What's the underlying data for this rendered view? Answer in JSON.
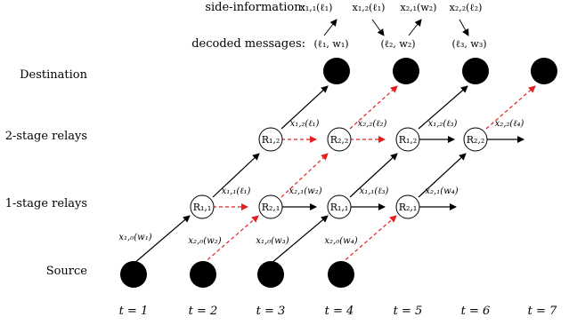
{
  "header": {
    "side_information_label": "side-information:",
    "decoded_messages_label": "decoded messages:",
    "side_information": [
      "x₁,₁(ℓ₁)",
      "x₁,₂(ℓ₁)",
      "x₂,₁(w₂)",
      "x₂,₂(ℓ₂)"
    ],
    "decoded_messages": [
      "(ℓ₁, w₁)",
      "(ℓ₂, w₂)",
      "(ℓ₃, w₃)"
    ]
  },
  "rows": {
    "destination": "Destination",
    "two_stage": "2-stage relays",
    "one_stage": "1-stage relays",
    "source": "Source"
  },
  "times": [
    "t = 1",
    "t = 2",
    "t = 3",
    "t = 4",
    "t = 5",
    "t = 6",
    "t = 7"
  ],
  "relay_nodes": {
    "r11": "R₁,₁",
    "r21": "R₂,₁",
    "r12": "R₁,₂",
    "r22": "R₂,₂"
  },
  "edge_labels": {
    "source_t1": "x₁,₀(w₁)",
    "source_t2": "x₂,₀(w₂)",
    "source_t3": "x₁,₀(w₃)",
    "source_t4": "x₂,₀(w₄)",
    "relay1_t2": "x₁,₁(ℓ₁)",
    "relay1_t3": "x₂,₁(w₂)",
    "relay1_t4": "x₁,₁(ℓ₃)",
    "relay1_t5": "x₂,₁(w₄)",
    "relay2_t3": "x₁,₂(ℓ₁)",
    "relay2_t4": "x₂,₂(ℓ₂)",
    "relay2_t5": "x₁,₂(ℓ₃)",
    "relay2_t6": "x₂,₂(ℓ₄)"
  },
  "colors": {
    "solid_edge": "#000000",
    "dashed_edge": "#e02020",
    "node_fill": "#000000"
  }
}
